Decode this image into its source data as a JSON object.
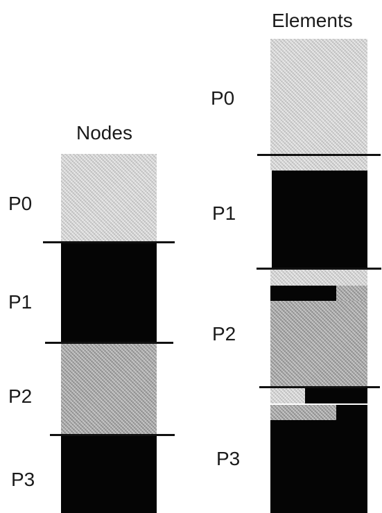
{
  "nodes": {
    "title": "Nodes",
    "partitions": [
      {
        "label": "P0",
        "shade": "light"
      },
      {
        "label": "P1",
        "shade": "dark"
      },
      {
        "label": "P2",
        "shade": "mid"
      },
      {
        "label": "P3",
        "shade": "dark"
      }
    ]
  },
  "elements": {
    "title": "Elements",
    "partitions": [
      {
        "label": "P0",
        "shade": "light"
      },
      {
        "label": "P1",
        "shade": "dark"
      },
      {
        "label": "P2",
        "shade": "mid"
      },
      {
        "label": "P3",
        "shade": "dark"
      }
    ]
  },
  "colors": {
    "light": "#cfcfcf",
    "mid": "#a9a9a9",
    "dark": "#050505",
    "divider": "#111111"
  }
}
